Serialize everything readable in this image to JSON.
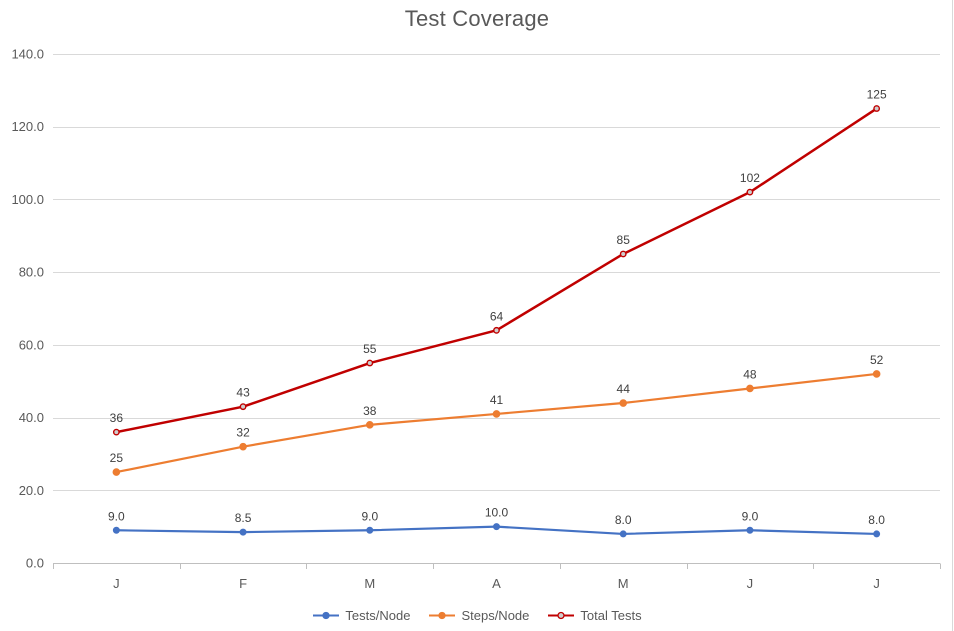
{
  "chart_data": {
    "type": "line",
    "title": "Test Coverage",
    "categories": [
      "J",
      "F",
      "M",
      "A",
      "M",
      "J",
      "J"
    ],
    "series": [
      {
        "name": "Tests/Node",
        "color": "#4472C4",
        "marker_fill": "#4472C4",
        "marker_stroke": "#4472C4",
        "values": [
          9.0,
          8.5,
          9.0,
          10.0,
          8.0,
          9.0,
          8.0
        ],
        "labels": [
          "9.0",
          "8.5",
          "9.0",
          "10.0",
          "8.0",
          "9.0",
          "8.0"
        ]
      },
      {
        "name": "Steps/Node",
        "color": "#ED7D31",
        "marker_fill": "#ED7D31",
        "marker_stroke": "#ED7D31",
        "values": [
          25,
          32,
          38,
          41,
          44,
          48,
          52
        ],
        "labels": [
          "25",
          "32",
          "38",
          "41",
          "44",
          "48",
          "52"
        ]
      },
      {
        "name": "Total Tests",
        "color": "#C00000",
        "marker_fill": "#CFCDCD",
        "marker_stroke": "#C00000",
        "values": [
          36,
          43,
          55,
          64,
          85,
          102,
          125
        ],
        "labels": [
          "36",
          "43",
          "55",
          "64",
          "85",
          "102",
          "125"
        ]
      }
    ],
    "ylim": [
      0,
      140
    ],
    "ytick_step": 20,
    "ytick_labels": [
      "0.0",
      "20.0",
      "40.0",
      "60.0",
      "80.0",
      "100.0",
      "120.0",
      "140.0"
    ],
    "grid": true,
    "legend_position": "bottom"
  },
  "colors": {
    "background": "#FFFFFF",
    "gridline": "#D9D9D9",
    "axis": "#BFBFBF",
    "axis_text": "#595959",
    "data_label_text": "#404040",
    "title_text": "#595959",
    "chart_border": "#D9D9D9"
  }
}
